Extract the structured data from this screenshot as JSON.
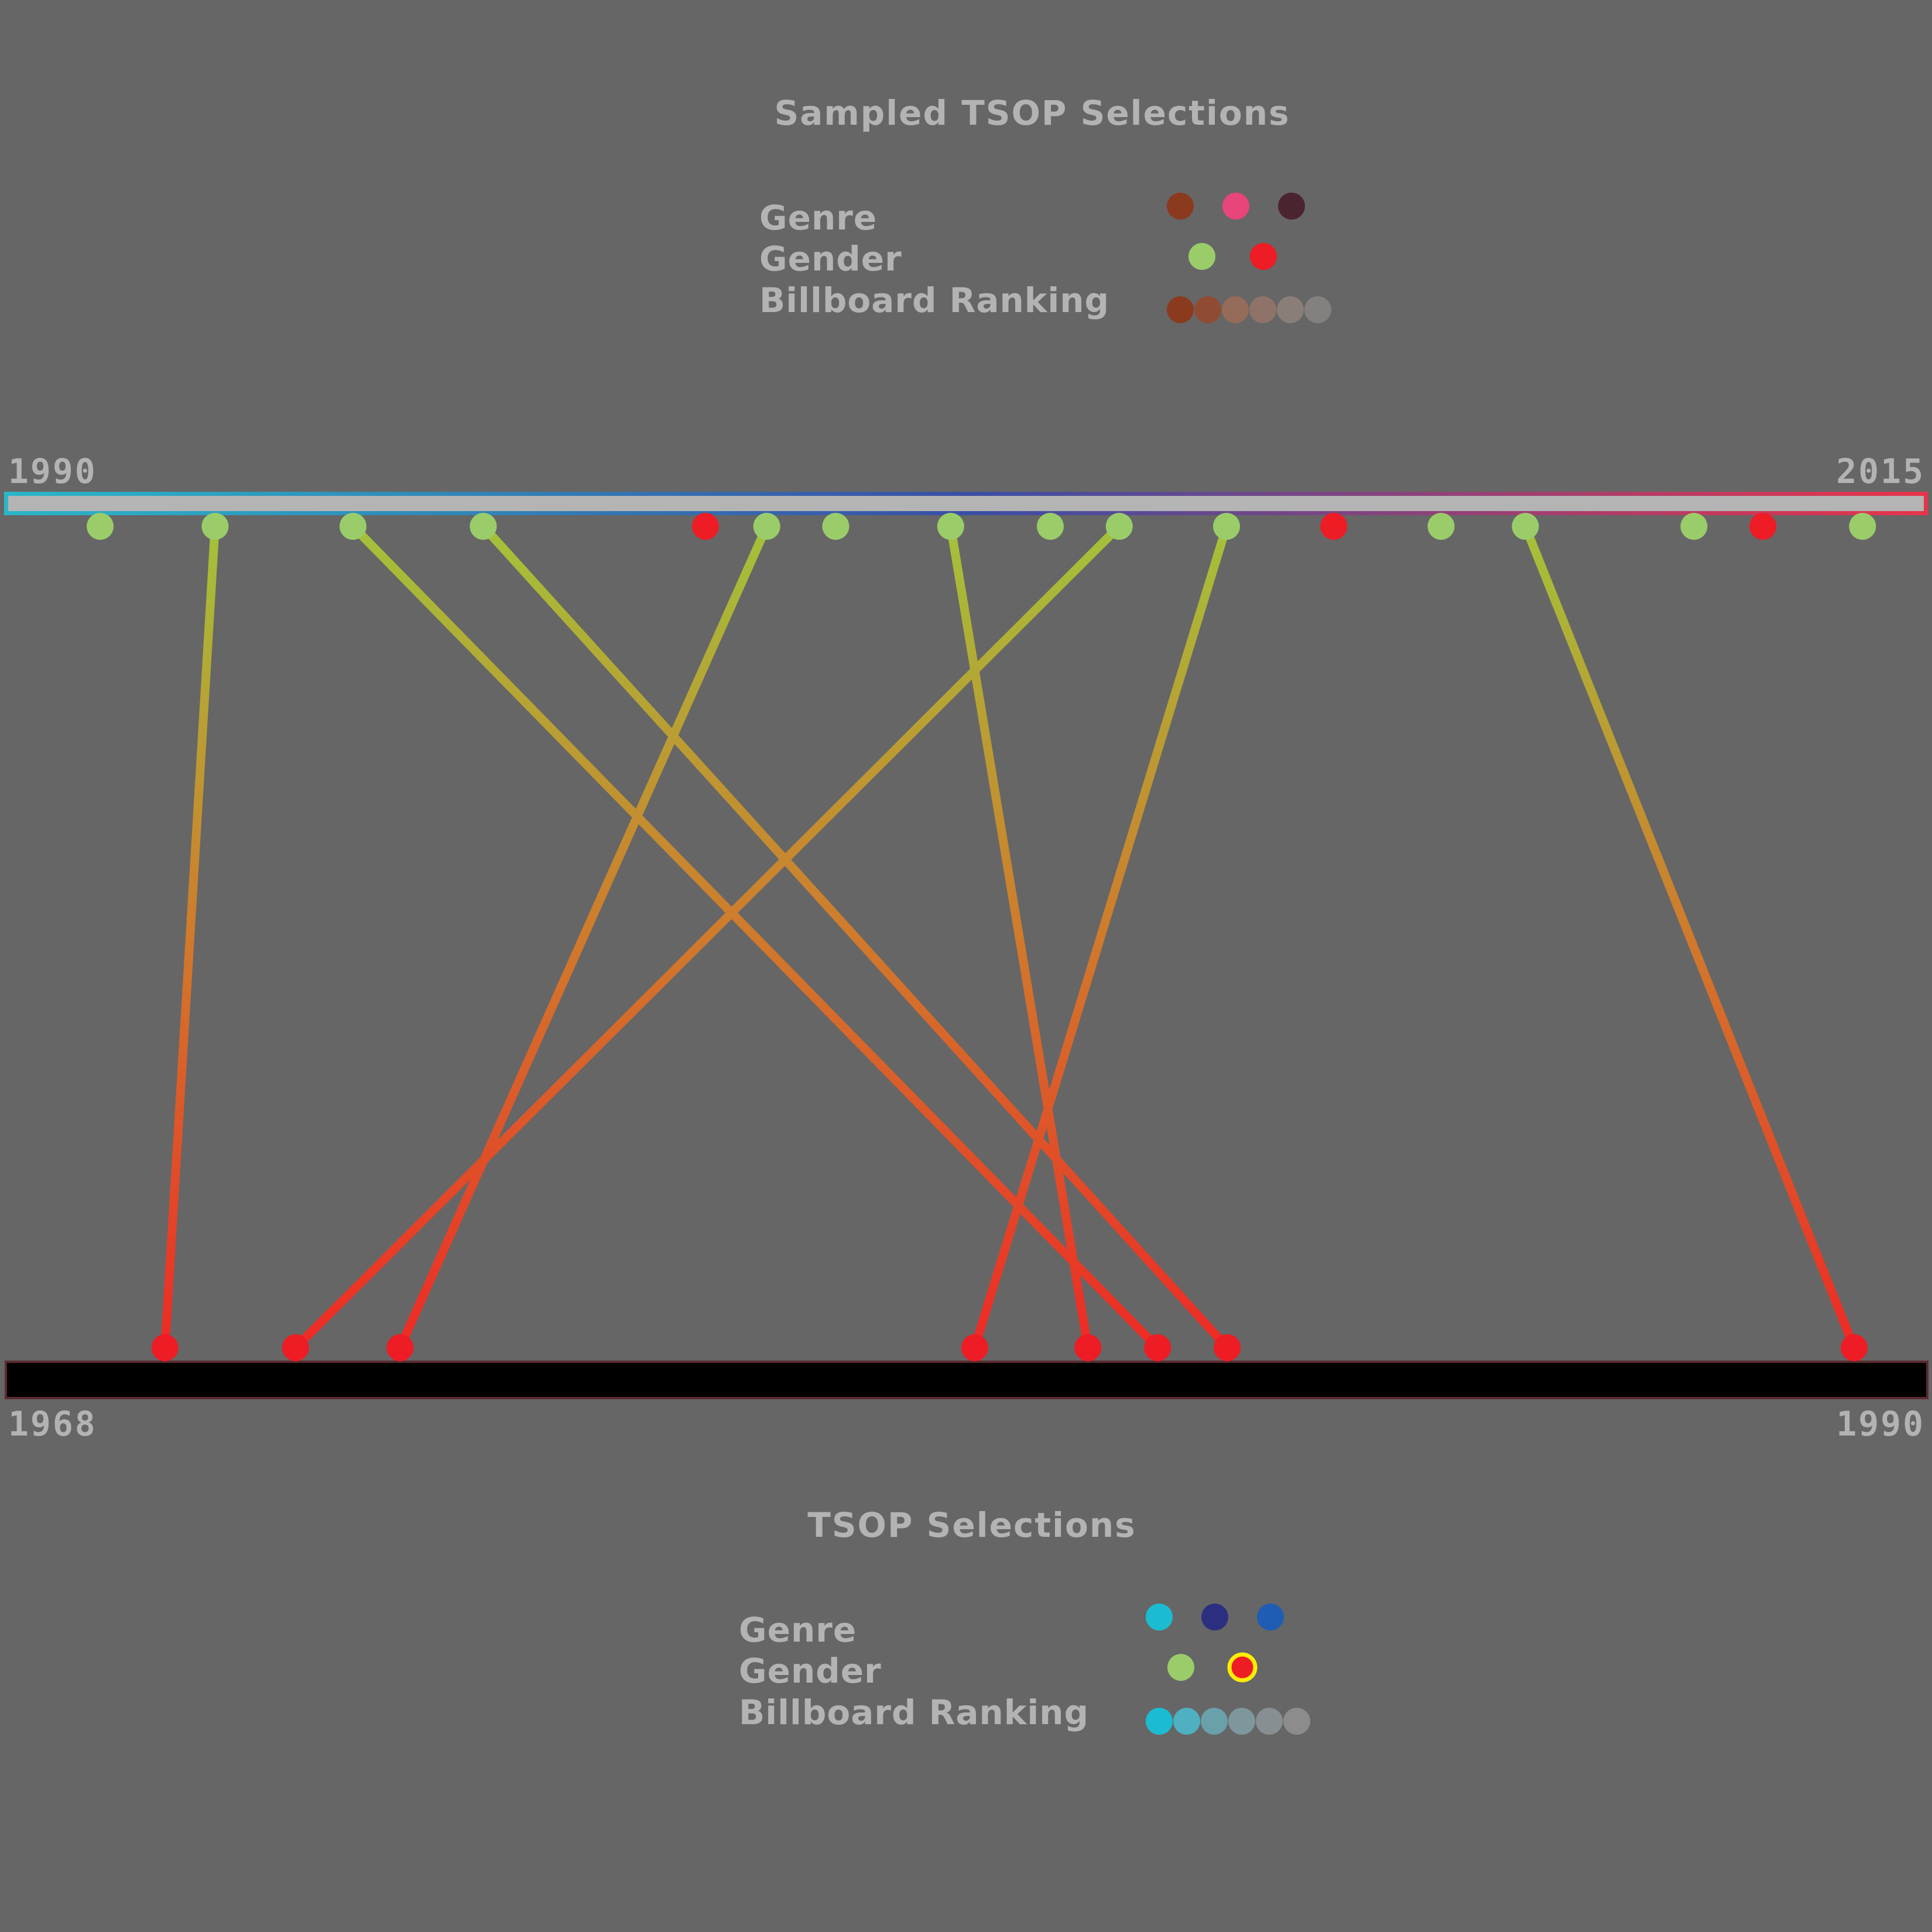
{
  "top_panel": {
    "title": "Sampled TSOP Selections",
    "legend": {
      "genre_label": "Genre",
      "gender_label": "Gender",
      "ranking_label": "Billboard Ranking",
      "genre_colors": [
        "#8b3a1e",
        "#e8457a",
        "#4a2530"
      ],
      "gender_colors": [
        "#9acd6a",
        "#ee1c25"
      ],
      "ranking_colors": [
        "#8b3a1e",
        "#8f4c33",
        "#956b59",
        "#8f7368",
        "#8a7e79",
        "#858080"
      ]
    },
    "axis_start": "1990",
    "axis_end": "2015",
    "bar_gradient": [
      "#2ab7c8",
      "#3a4fa5",
      "#e8344a"
    ]
  },
  "bottom_panel": {
    "title": "TSOP Selections",
    "legend": {
      "genre_label": "Genre",
      "gender_label": "Gender",
      "ranking_label": "Billboard Ranking",
      "genre_colors": [
        "#1bbcd2",
        "#2c2f7f",
        "#1e5db3"
      ],
      "gender_colors": [
        "#9acd6a",
        "#ee1c25"
      ],
      "gender_selected_ring": "#ffee00",
      "ranking_colors": [
        "#1bbcd2",
        "#4eb0c0",
        "#6aa0aa",
        "#7e979d",
        "#888f92",
        "#8c8c8c"
      ]
    },
    "axis_start": "1968",
    "axis_end": "1990",
    "bar_color": "#000000"
  },
  "colors": {
    "male": "#9acd6a",
    "female": "#ee1c25",
    "link_start": "#a3c23a",
    "link_mid": "#d07a2c",
    "link_end": "#ee2a25"
  },
  "top_dots": [
    {
      "year": 1991.2,
      "gender": "male"
    },
    {
      "year": 1992.7,
      "gender": "male"
    },
    {
      "year": 1994.5,
      "gender": "male"
    },
    {
      "year": 1996.2,
      "gender": "male"
    },
    {
      "year": 1999.1,
      "gender": "female"
    },
    {
      "year": 1999.9,
      "gender": "male"
    },
    {
      "year": 2000.8,
      "gender": "male"
    },
    {
      "year": 2002.3,
      "gender": "male"
    },
    {
      "year": 2003.6,
      "gender": "male"
    },
    {
      "year": 2004.5,
      "gender": "male"
    },
    {
      "year": 2005.9,
      "gender": "male"
    },
    {
      "year": 2007.3,
      "gender": "female"
    },
    {
      "year": 2008.7,
      "gender": "male"
    },
    {
      "year": 2009.8,
      "gender": "male"
    },
    {
      "year": 2012.0,
      "gender": "male"
    },
    {
      "year": 2012.9,
      "gender": "female"
    },
    {
      "year": 2014.2,
      "gender": "male"
    }
  ],
  "bottom_dots": [
    {
      "year": 1969.8,
      "gender": "female"
    },
    {
      "year": 1971.3,
      "gender": "female"
    },
    {
      "year": 1972.5,
      "gender": "female"
    },
    {
      "year": 1979.1,
      "gender": "female"
    },
    {
      "year": 1980.4,
      "gender": "female"
    },
    {
      "year": 1981.2,
      "gender": "female"
    },
    {
      "year": 1982.0,
      "gender": "female"
    },
    {
      "year": 1989.2,
      "gender": "female"
    }
  ],
  "links": [
    {
      "from": 1992.7,
      "to": 1969.8
    },
    {
      "from": 1994.5,
      "to": 1981.2
    },
    {
      "from": 1996.2,
      "to": 1982.0
    },
    {
      "from": 1999.9,
      "to": 1972.5
    },
    {
      "from": 2002.3,
      "to": 1980.4
    },
    {
      "from": 2004.5,
      "to": 1971.3
    },
    {
      "from": 2005.9,
      "to": 1979.1
    },
    {
      "from": 2009.8,
      "to": 1989.2
    }
  ]
}
